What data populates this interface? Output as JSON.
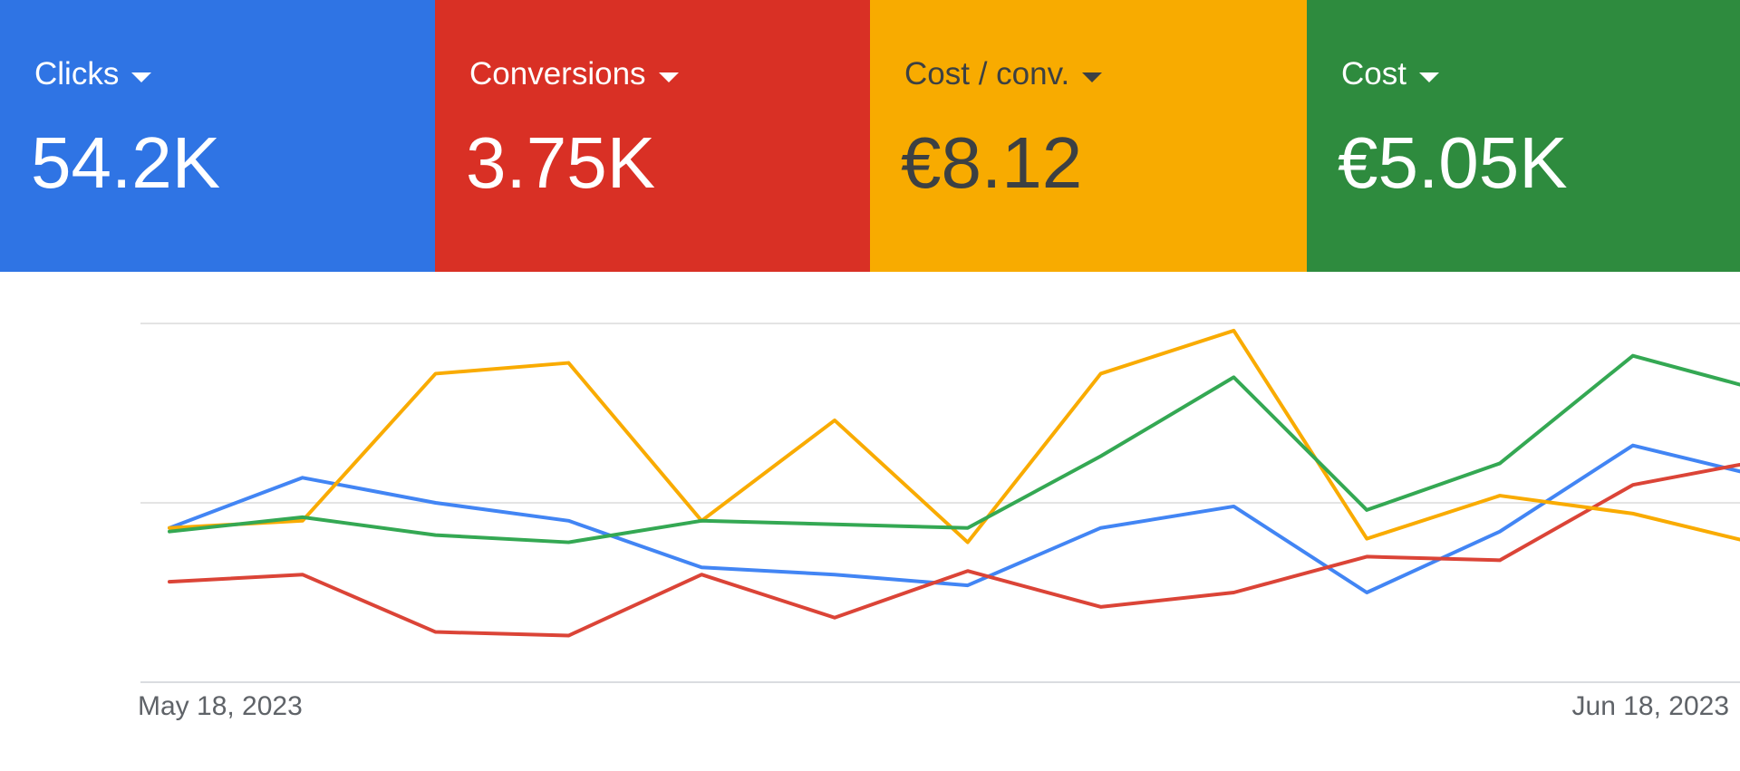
{
  "metrics": [
    {
      "label": "Clicks",
      "value": "54.2K",
      "bg": "#2f74e4",
      "fg": "#ffffff",
      "label_fg": "#ffffff",
      "series_color": "#4285f4",
      "icon": "caret-down-icon"
    },
    {
      "label": "Conversions",
      "value": "3.75K",
      "bg": "#d93025",
      "fg": "#ffffff",
      "label_fg": "#ffffff",
      "series_color": "#db4437",
      "icon": "caret-down-icon"
    },
    {
      "label": "Cost / conv.",
      "value": "€8.12",
      "bg": "#f8ab00",
      "fg": "#3c4043",
      "label_fg": "#3c4043",
      "series_color": "#f9ab00",
      "icon": "caret-down-icon"
    },
    {
      "label": "Cost",
      "value": "€5.05K",
      "bg": "#2e8b3e",
      "fg": "#ffffff",
      "label_fg": "#ffffff",
      "series_color": "#34a853",
      "icon": "caret-down-icon"
    }
  ],
  "chart_data": {
    "type": "line",
    "x": [
      "May 18, 2023",
      "",
      "",
      "",
      "",
      "",
      "",
      "",
      "",
      "",
      "",
      "",
      "",
      "Jun 18, 2023"
    ],
    "x_tick_labels": [
      {
        "index": 0,
        "label": "May 18, 2023"
      },
      {
        "index": 13,
        "label": "Jun 18, 2023"
      }
    ],
    "ylim": [
      0,
      100
    ],
    "grid": true,
    "legend": "none",
    "series": [
      {
        "color": "#4285f4",
        "values": [
          43,
          57,
          50,
          45,
          32,
          30,
          27,
          43,
          49,
          25,
          42,
          66,
          57,
          49
        ]
      },
      {
        "color": "#db4437",
        "values": [
          28,
          30,
          14,
          13,
          30,
          18,
          31,
          21,
          25,
          35,
          34,
          55,
          62,
          61
        ]
      },
      {
        "color": "#f9ab00",
        "values": [
          43,
          45,
          86,
          89,
          45,
          73,
          39,
          86,
          98,
          40,
          52,
          47,
          38,
          36
        ]
      },
      {
        "color": "#34a853",
        "values": [
          42,
          46,
          41,
          39,
          45,
          44,
          43,
          63,
          85,
          48,
          61,
          91,
          81,
          78
        ]
      }
    ]
  }
}
